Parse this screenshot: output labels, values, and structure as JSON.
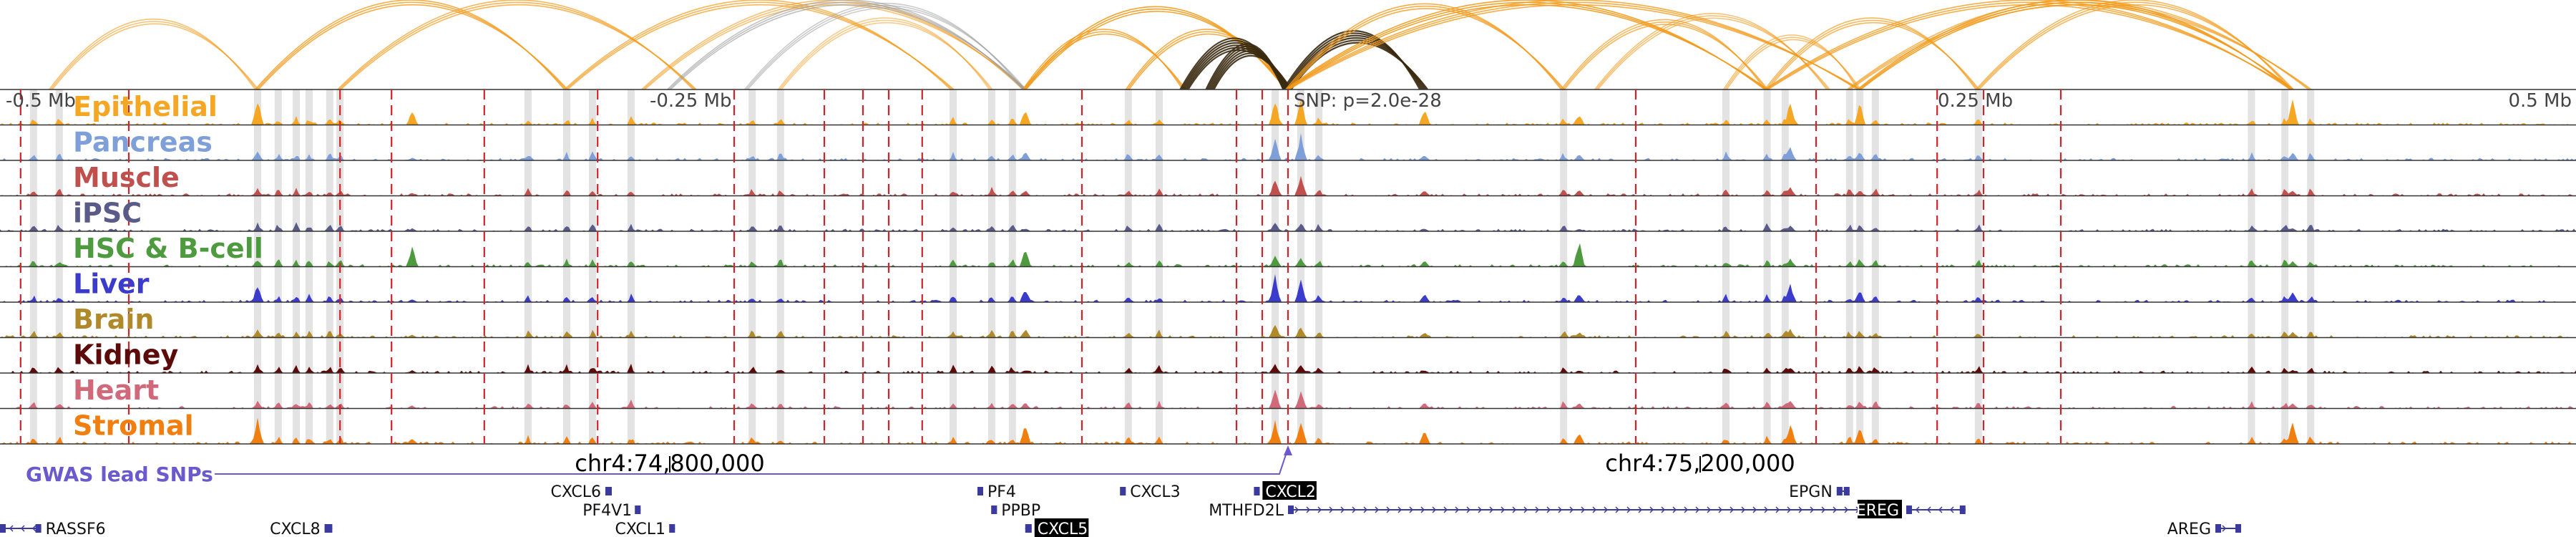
{
  "chart_data": {
    "type": "genome-browser",
    "region": {
      "chrom": "chr4",
      "start": 74540000,
      "end": 75540000
    },
    "scale_labels": [
      {
        "pos": 74540000,
        "text": "-0.5 Mb"
      },
      {
        "pos": 74790000,
        "text": "-0.25 Mb"
      },
      {
        "pos": 75290000,
        "text": "0.25 Mb"
      },
      {
        "pos": 75540000,
        "text": "0.5 Mb"
      }
    ],
    "coordinate_ticks": [
      {
        "pos": 74800000,
        "text": "chr4:74,800,000"
      },
      {
        "pos": 75200000,
        "text": "chr4:75,200,000"
      }
    ],
    "snp": {
      "pos": 75040000,
      "label": "SNP: p=2.0e-28"
    },
    "gwas_label": "GWAS lead SNPs",
    "tracks": [
      {
        "name": "Epithelial",
        "color": "#f5a623"
      },
      {
        "name": "Pancreas",
        "color": "#7e9fd8"
      },
      {
        "name": "Muscle",
        "color": "#c0504d"
      },
      {
        "name": "iPSC",
        "color": "#5b5b8a"
      },
      {
        "name": "HSC & B-cell",
        "color": "#4e9a3f"
      },
      {
        "name": "Liver",
        "color": "#3b3bcc"
      },
      {
        "name": "Brain",
        "color": "#b08a2a"
      },
      {
        "name": "Kidney",
        "color": "#5c0a0a"
      },
      {
        "name": "Heart",
        "color": "#d06a7a"
      },
      {
        "name": "Stromal",
        "color": "#f07f10"
      }
    ],
    "peak_positions": [
      74553000,
      74563000,
      74640000,
      74648000,
      74655000,
      74660000,
      74668000,
      74672000,
      74745000,
      74760000,
      74770000,
      74785000,
      74832000,
      74843000,
      74910000,
      74925000,
      74933000,
      74978000,
      74990000,
      75035000,
      75045000,
      75052000,
      75147000,
      75210000,
      75226000,
      75233000,
      75258000,
      75262000,
      75268000,
      75308000,
      75414000,
      75427000,
      75437000
    ],
    "strong_peaks": [
      {
        "pos": 74640000,
        "h": [
          0.9,
          0.3,
          0.2,
          0.1,
          0.25,
          0.6,
          0.25,
          0.1,
          0.2,
          0.9
        ]
      },
      {
        "pos": 74700000,
        "h": [
          0.5,
          0.1,
          0.1,
          0.1,
          0.7,
          0.1,
          0.1,
          0.1,
          0.1,
          0.2
        ]
      },
      {
        "pos": 74938000,
        "h": [
          0.6,
          0.3,
          0.2,
          0.1,
          0.7,
          0.5,
          0.3,
          0.1,
          0.2,
          0.7
        ]
      },
      {
        "pos": 75035000,
        "h": [
          0.9,
          0.8,
          0.6,
          0.3,
          0.4,
          0.9,
          0.5,
          0.3,
          0.7,
          0.8
        ]
      },
      {
        "pos": 75045000,
        "h": [
          0.9,
          0.9,
          0.7,
          0.3,
          0.3,
          0.8,
          0.4,
          0.3,
          0.6,
          0.9
        ]
      },
      {
        "pos": 75093000,
        "h": [
          0.6,
          0.2,
          0.2,
          0.1,
          0.2,
          0.3,
          0.2,
          0.1,
          0.2,
          0.5
        ]
      },
      {
        "pos": 75153000,
        "h": [
          0.4,
          0.2,
          0.2,
          0.1,
          0.9,
          0.3,
          0.2,
          0.1,
          0.2,
          0.4
        ]
      },
      {
        "pos": 75235000,
        "h": [
          0.9,
          0.5,
          0.3,
          0.2,
          0.3,
          0.6,
          0.3,
          0.2,
          0.3,
          0.7
        ]
      },
      {
        "pos": 75262000,
        "h": [
          0.8,
          0.3,
          0.2,
          0.1,
          0.2,
          0.4,
          0.2,
          0.1,
          0.2,
          0.6
        ]
      },
      {
        "pos": 75430000,
        "h": [
          0.9,
          0.3,
          0.2,
          0.1,
          0.2,
          0.4,
          0.2,
          0.1,
          0.2,
          0.8
        ]
      }
    ],
    "red_markers": [
      74548000,
      74590000,
      74672000,
      74692000,
      74728000,
      74772000,
      74825000,
      74860000,
      74875000,
      74885000,
      74898000,
      74960000,
      75020000,
      75030000,
      75040000,
      75175000,
      75245000,
      75292000,
      75310000,
      75340000
    ],
    "loops": [
      {
        "a": 74560000,
        "b": 74640000,
        "w": 0.6,
        "c": "orange"
      },
      {
        "a": 74640000,
        "b": 74760000,
        "w": 0.8,
        "c": "orange"
      },
      {
        "a": 74672000,
        "b": 74810000,
        "w": 0.7,
        "c": "orange"
      },
      {
        "a": 74760000,
        "b": 74910000,
        "w": 0.7,
        "c": "orange"
      },
      {
        "a": 74790000,
        "b": 74938000,
        "w": 0.6,
        "c": "orange"
      },
      {
        "a": 74800000,
        "b": 74938000,
        "w": 0.6,
        "c": "gray"
      },
      {
        "a": 74830000,
        "b": 74938000,
        "w": 0.5,
        "c": "gray"
      },
      {
        "a": 74843000,
        "b": 74925000,
        "w": 0.5,
        "c": "orange"
      },
      {
        "a": 74938000,
        "b": 75000000,
        "w": 0.8,
        "c": "orange"
      },
      {
        "a": 74938000,
        "b": 75040000,
        "w": 0.9,
        "c": "orange"
      },
      {
        "a": 74978000,
        "b": 75040000,
        "w": 0.8,
        "c": "orange"
      },
      {
        "a": 75000000,
        "b": 75040000,
        "w": 0.9,
        "c": "dark"
      },
      {
        "a": 75010000,
        "b": 75040000,
        "w": 0.9,
        "c": "dark"
      },
      {
        "a": 75040000,
        "b": 75093000,
        "w": 0.9,
        "c": "dark"
      },
      {
        "a": 75040000,
        "b": 75147000,
        "w": 0.8,
        "c": "orange"
      },
      {
        "a": 75040000,
        "b": 75226000,
        "w": 0.9,
        "c": "orange"
      },
      {
        "a": 75040000,
        "b": 75262000,
        "w": 0.8,
        "c": "orange"
      },
      {
        "a": 75147000,
        "b": 75226000,
        "w": 0.7,
        "c": "orange"
      },
      {
        "a": 75210000,
        "b": 75262000,
        "w": 0.6,
        "c": "orange"
      },
      {
        "a": 75226000,
        "b": 75308000,
        "w": 0.7,
        "c": "orange"
      },
      {
        "a": 75262000,
        "b": 75430000,
        "w": 0.9,
        "c": "orange"
      },
      {
        "a": 75226000,
        "b": 75430000,
        "w": 0.8,
        "c": "orange"
      },
      {
        "a": 75308000,
        "b": 75430000,
        "w": 0.7,
        "c": "orange"
      },
      {
        "a": 75258000,
        "b": 75437000,
        "w": 0.7,
        "c": "orange"
      },
      {
        "a": 75160000,
        "b": 75250000,
        "w": 0.6,
        "c": "orange"
      }
    ],
    "genes": [
      {
        "name": "CXCL6",
        "start": 74775000,
        "end": 74777500,
        "row": 0,
        "strand": "+",
        "label_side": "left",
        "highlight": false
      },
      {
        "name": "PF4V1",
        "start": 74787000,
        "end": 74788500,
        "row": 1,
        "strand": "+",
        "label_side": "left",
        "highlight": false
      },
      {
        "name": "CXCL1",
        "start": 74800000,
        "end": 74802000,
        "row": 2,
        "strand": "+",
        "label_side": "left",
        "highlight": false
      },
      {
        "name": "CXCL8",
        "start": 74666000,
        "end": 74669000,
        "row": 2,
        "strand": "+",
        "label_side": "left",
        "highlight": false
      },
      {
        "name": "RASSF6",
        "start": 74540000,
        "end": 74556000,
        "row": 2,
        "strand": "-",
        "label_side": "right",
        "highlight": false
      },
      {
        "name": "PF4",
        "start": 74920000,
        "end": 74921500,
        "row": 0,
        "strand": "+",
        "label_side": "right",
        "highlight": false
      },
      {
        "name": "PPBP",
        "start": 74925000,
        "end": 74927000,
        "row": 1,
        "strand": "+",
        "label_side": "right",
        "highlight": false
      },
      {
        "name": "CXCL5",
        "start": 74938000,
        "end": 74940500,
        "row": 2,
        "strand": "-",
        "label_side": "right",
        "highlight": true
      },
      {
        "name": "CXCL3",
        "start": 74975000,
        "end": 74977000,
        "row": 0,
        "strand": "-",
        "label_side": "right",
        "highlight": false
      },
      {
        "name": "CXCL2",
        "start": 75027000,
        "end": 75029000,
        "row": 0,
        "strand": "-",
        "label_side": "right",
        "highlight": true
      },
      {
        "name": "MTHFD2L",
        "start": 75040000,
        "end": 75265000,
        "row": 1,
        "strand": "+",
        "label_side": "left",
        "highlight": false
      },
      {
        "name": "EPGN",
        "start": 75253000,
        "end": 75258000,
        "row": 0,
        "strand": "-",
        "label_side": "left",
        "highlight": false
      },
      {
        "name": "EREG",
        "start": 75280000,
        "end": 75303000,
        "row": 1,
        "strand": "-",
        "label_side": "left",
        "highlight": true
      },
      {
        "name": "AREG",
        "start": 75400000,
        "end": 75410000,
        "row": 2,
        "strand": "+",
        "label_side": "left",
        "highlight": false
      }
    ]
  }
}
